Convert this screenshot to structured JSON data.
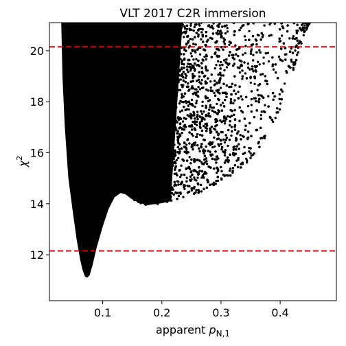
{
  "chart_data": {
    "type": "scatter",
    "title": "VLT 2017 C2R immersion",
    "xlabel_main": "apparent ",
    "xlabel_var": "p",
    "xlabel_sub": "N,1",
    "ylabel_var": "χ",
    "ylabel_sup": "2",
    "xlim": [
      0.01,
      0.495
    ],
    "ylim": [
      10.2,
      21.1
    ],
    "xticks": [
      0.1,
      0.2,
      0.3,
      0.4
    ],
    "xtick_labels": [
      "0.1",
      "0.2",
      "0.3",
      "0.4"
    ],
    "yticks": [
      12,
      14,
      16,
      18,
      20
    ],
    "ytick_labels": [
      "12",
      "14",
      "16",
      "18",
      "20"
    ],
    "reference_lines": [
      {
        "y": 20.15,
        "color": "#e00000",
        "style": "dashed"
      },
      {
        "y": 12.15,
        "color": "#e00000",
        "style": "dashed"
      }
    ],
    "point_color": "#000000",
    "lower_envelope": [
      [
        0.03,
        21.1
      ],
      [
        0.032,
        19.0
      ],
      [
        0.036,
        17.0
      ],
      [
        0.042,
        15.0
      ],
      [
        0.05,
        13.6
      ],
      [
        0.056,
        12.6
      ],
      [
        0.062,
        11.8
      ],
      [
        0.066,
        11.4
      ],
      [
        0.07,
        11.15
      ],
      [
        0.074,
        11.1
      ],
      [
        0.078,
        11.2
      ],
      [
        0.083,
        11.6
      ],
      [
        0.09,
        12.3
      ],
      [
        0.1,
        13.1
      ],
      [
        0.11,
        13.8
      ],
      [
        0.12,
        14.25
      ],
      [
        0.13,
        14.42
      ],
      [
        0.138,
        14.38
      ],
      [
        0.148,
        14.2
      ],
      [
        0.16,
        14.05
      ],
      [
        0.175,
        13.95
      ],
      [
        0.195,
        14.0
      ],
      [
        0.215,
        14.1
      ],
      [
        0.24,
        14.25
      ],
      [
        0.265,
        14.45
      ],
      [
        0.29,
        14.7
      ],
      [
        0.315,
        15.05
      ],
      [
        0.34,
        15.5
      ],
      [
        0.36,
        16.0
      ],
      [
        0.38,
        16.7
      ],
      [
        0.395,
        17.4
      ],
      [
        0.41,
        18.3
      ],
      [
        0.422,
        19.2
      ],
      [
        0.432,
        20.0
      ],
      [
        0.44,
        20.6
      ],
      [
        0.45,
        21.1
      ]
    ]
  }
}
